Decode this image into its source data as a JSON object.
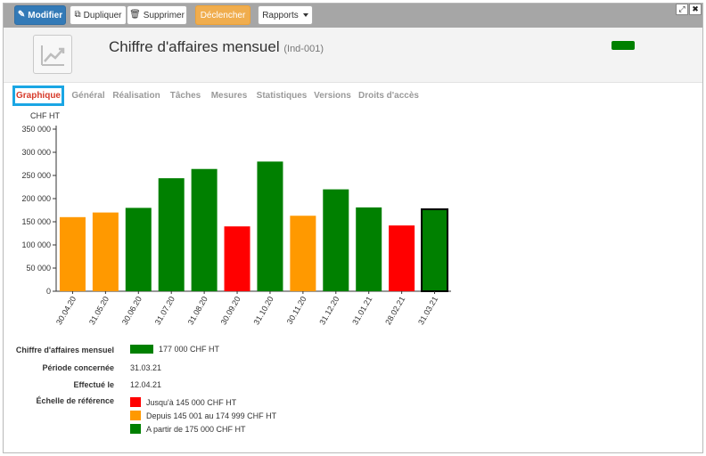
{
  "toolbar": {
    "modify_label": "Modifier",
    "duplicate_label": "Dupliquer",
    "delete_label": "Supprimer",
    "trigger_label": "Déclencher",
    "reports_label": "Rapports"
  },
  "window_controls": {
    "expand": "⤢",
    "close": "✖"
  },
  "header": {
    "title": "Chiffre d'affaires mensuel",
    "code": "(Ind-001)",
    "status_color": "#008000"
  },
  "tabs": [
    "Graphique",
    "Général",
    "Réalisation",
    "Tâches",
    "Mesures",
    "Statistiques",
    "Versions",
    "Droits d'accès"
  ],
  "active_tab": "Graphique",
  "chart_data": {
    "type": "bar",
    "ylabel": "CHF HT",
    "ylim": [
      0,
      350000
    ],
    "yticks": [
      0,
      50000,
      100000,
      150000,
      200000,
      250000,
      300000,
      350000
    ],
    "ytick_labels": [
      "0",
      "50 000",
      "100 000",
      "150 000",
      "200 000",
      "250 000",
      "300 000",
      "350 000"
    ],
    "categories": [
      "30.04.20",
      "31.05.20",
      "30.06.20",
      "31.07.20",
      "31.08.20",
      "30.09.20",
      "31.10.20",
      "30.11.20",
      "31.12.20",
      "31.01.21",
      "28.02.21",
      "31.03.21"
    ],
    "values": [
      160000,
      170000,
      180000,
      244000,
      264000,
      140000,
      280000,
      163000,
      220000,
      181000,
      142000,
      177000
    ],
    "bar_colors": [
      "#ff9900",
      "#ff9900",
      "#008000",
      "#008000",
      "#008000",
      "#ff0000",
      "#008000",
      "#ff9900",
      "#008000",
      "#008000",
      "#ff0000",
      "#008000"
    ],
    "highlighted_index": 11
  },
  "details": {
    "revenue_label": "Chiffre d'affaires mensuel",
    "revenue_value": "177 000 CHF HT",
    "revenue_color": "#008000",
    "period_label": "Période concernée",
    "period_value": "31.03.21",
    "done_label": "Effectué le",
    "done_value": "12.04.21",
    "scale_label": "Échelle de référence",
    "scale": [
      {
        "color": "#ff0000",
        "text": "Jusqu'à 145 000 CHF HT"
      },
      {
        "color": "#ff9900",
        "text": "Depuis 145 001 au 174 999 CHF HT"
      },
      {
        "color": "#008000",
        "text": "A partir de 175 000 CHF HT"
      }
    ]
  },
  "colors": {
    "toolbar_bg": "#a6a6a6",
    "primary": "#337ab7",
    "warning": "#f0ad4e",
    "active_tab_text": "#d63a2a",
    "active_tab_border": "#1aa6e4"
  }
}
